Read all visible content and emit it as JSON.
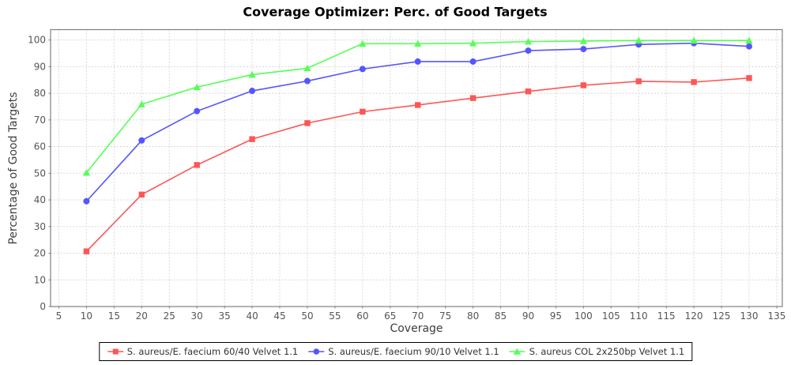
{
  "chart_data": {
    "type": "line",
    "title": "Coverage Optimizer: Perc. of Good Targets",
    "xlabel": "Coverage",
    "ylabel": "Percentage of Good Targets",
    "xlim": [
      5,
      135
    ],
    "ylim": [
      0,
      100
    ],
    "x_tick_step": 5,
    "y_tick_step": 10,
    "grid": "dashed",
    "legend_position": "bottom",
    "x": [
      10,
      20,
      30,
      40,
      50,
      60,
      70,
      80,
      90,
      100,
      110,
      120,
      130
    ],
    "series": [
      {
        "name": "S. aureus/E. faecium 60/40 Velvet 1.1",
        "color": "#ff5555",
        "marker": "square",
        "values": [
          20.7,
          42.0,
          53.1,
          62.8,
          68.8,
          73.1,
          75.6,
          78.2,
          80.7,
          83.0,
          84.5,
          84.2,
          85.7
        ]
      },
      {
        "name": "S. aureus/E. faecium 90/10 Velvet 1.1",
        "color": "#5555ff",
        "marker": "circle",
        "values": [
          39.5,
          62.3,
          73.3,
          80.9,
          84.6,
          89.1,
          91.9,
          91.9,
          96.0,
          96.6,
          98.3,
          98.8,
          97.6
        ]
      },
      {
        "name": "S. aureus COL 2x250bp Velvet 1.1",
        "color": "#55ff55",
        "marker": "triangle",
        "values": [
          50.2,
          75.9,
          82.3,
          87.0,
          89.4,
          98.6,
          98.6,
          98.8,
          99.4,
          99.6,
          99.8,
          99.8,
          99.8
        ]
      }
    ],
    "colors": {
      "background": "#ffffff",
      "plot_border": "#808080",
      "gridline": "#d8d8d8",
      "tick_label": "#555555",
      "axis_label": "#3d3d3d",
      "title": "#000000",
      "legend_border": "#000000",
      "legend_text": "#333333"
    }
  }
}
